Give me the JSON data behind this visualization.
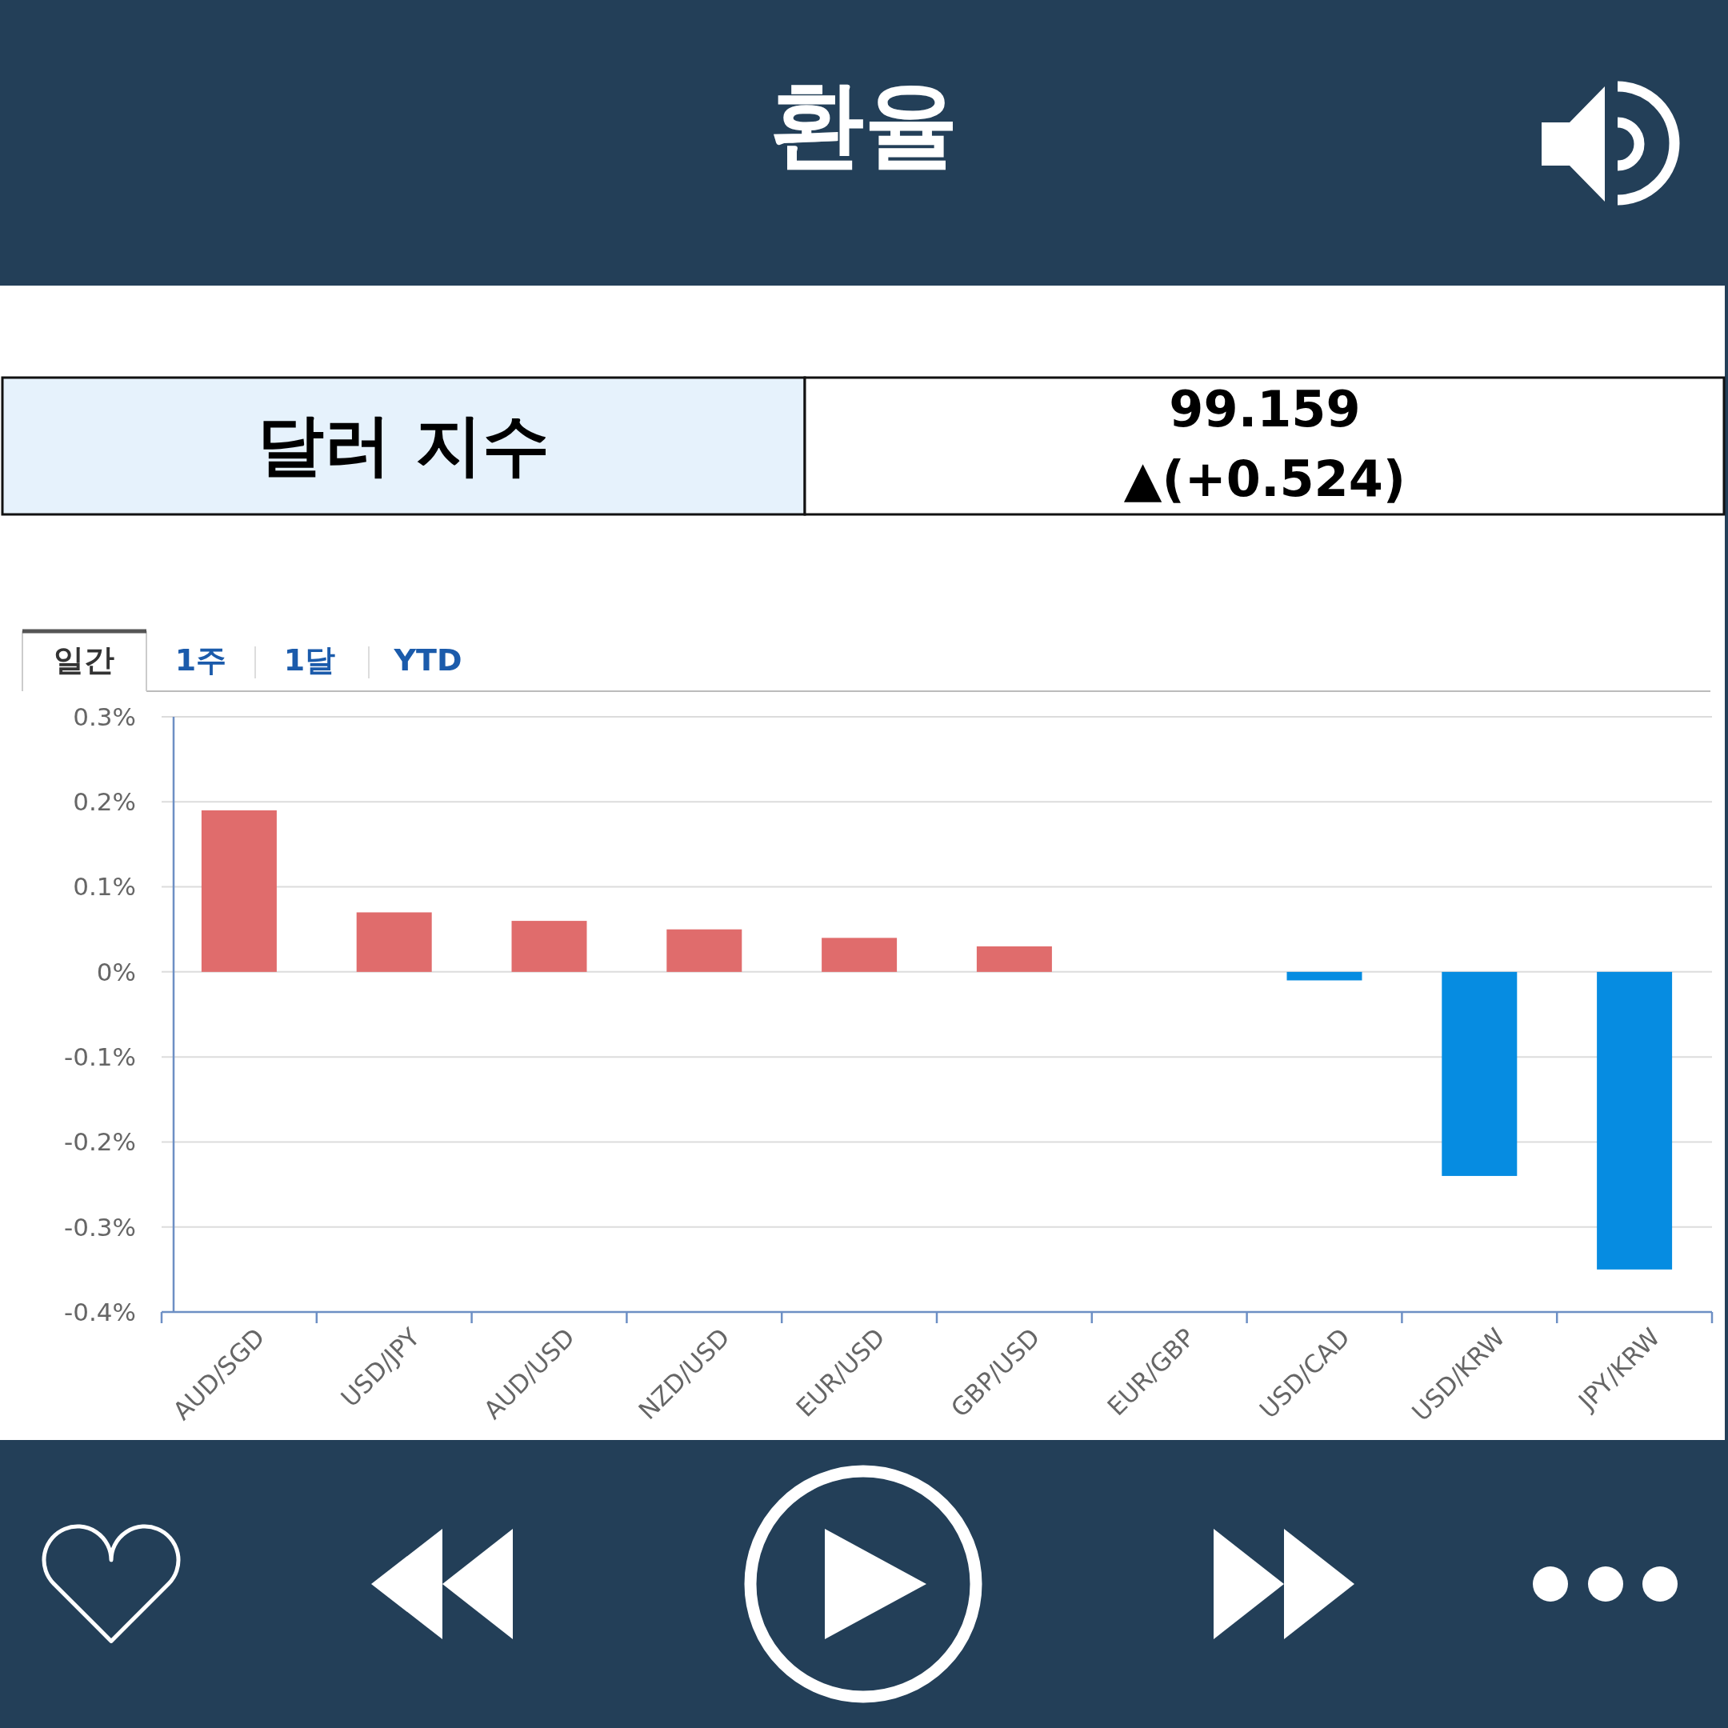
{
  "chart_data": {
    "type": "bar",
    "title": "환율",
    "categories": [
      "AUD/SGD",
      "USD/JPY",
      "AUD/USD",
      "NZD/USD",
      "EUR/USD",
      "GBP/USD",
      "EUR/GBP",
      "USD/CAD",
      "USD/KRW",
      "JPY/KRW"
    ],
    "values": [
      0.19,
      0.07,
      0.06,
      0.05,
      0.04,
      0.03,
      0,
      -0.01,
      -0.24,
      -0.35
    ],
    "colors": [
      "#e06c6c",
      "#e06c6c",
      "#e06c6c",
      "#e06c6c",
      "#e06c6c",
      "#e06c6c",
      "#e06c6c",
      "#068ce1",
      "#068ce1",
      "#068ce1"
    ],
    "ylim": [
      -0.4,
      0.3
    ],
    "yticks": [
      {
        "value": 0.3,
        "label": "0.3%"
      },
      {
        "value": 0.2,
        "label": "0.2%"
      },
      {
        "value": 0.1,
        "label": "0.1%"
      },
      {
        "value": 0,
        "label": "0%"
      },
      {
        "value": -0.1,
        "label": "-0.1%"
      },
      {
        "value": -0.2,
        "label": "-0.2%"
      },
      {
        "value": -0.3,
        "label": "-0.3%"
      },
      {
        "value": -0.4,
        "label": "-0.4%"
      }
    ],
    "grid": "y",
    "annotations": [
      "달러 지수",
      "99.159",
      "▲(+0.524)",
      "일간",
      "1주",
      "1달",
      "YTD"
    ]
  }
}
